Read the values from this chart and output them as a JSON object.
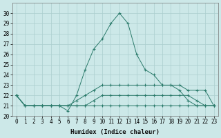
{
  "xlabel": "Humidex (Indice chaleur)",
  "x_values": [
    0,
    1,
    2,
    3,
    4,
    5,
    6,
    7,
    8,
    9,
    10,
    11,
    12,
    13,
    14,
    15,
    16,
    17,
    18,
    19,
    20,
    21,
    22,
    23
  ],
  "series": [
    [
      22,
      21,
      21,
      21,
      21,
      21,
      20.5,
      22,
      24.5,
      26.5,
      27.5,
      29,
      30,
      29,
      26,
      24.5,
      24,
      23,
      23,
      22.5,
      21.5,
      21,
      21,
      21
    ],
    [
      22,
      21,
      21,
      21,
      21,
      21,
      21,
      21.5,
      22,
      22.5,
      23,
      23,
      23,
      23,
      23,
      23,
      23,
      23,
      23,
      23,
      22.5,
      22.5,
      22.5,
      21
    ],
    [
      22,
      21,
      21,
      21,
      21,
      21,
      21,
      21,
      21,
      21.5,
      22,
      22,
      22,
      22,
      22,
      22,
      22,
      22,
      22,
      22,
      22,
      21.5,
      21,
      21
    ],
    [
      22,
      21,
      21,
      21,
      21,
      21,
      21,
      21,
      21,
      21,
      21,
      21,
      21,
      21,
      21,
      21,
      21,
      21,
      21,
      21,
      21,
      21,
      21,
      21
    ]
  ],
  "line_color": "#2a7a6a",
  "marker": "+",
  "bg_color": "#cce8e8",
  "grid_color": "#aacece",
  "ylim_min": 20,
  "ylim_max": 31,
  "ytick_min": 20,
  "ytick_max": 30,
  "xticks": [
    0,
    1,
    2,
    3,
    4,
    5,
    6,
    7,
    8,
    9,
    10,
    11,
    12,
    13,
    14,
    15,
    16,
    17,
    18,
    19,
    20,
    21,
    22,
    23
  ],
  "tick_fontsize": 5.5,
  "label_fontsize": 6.5
}
